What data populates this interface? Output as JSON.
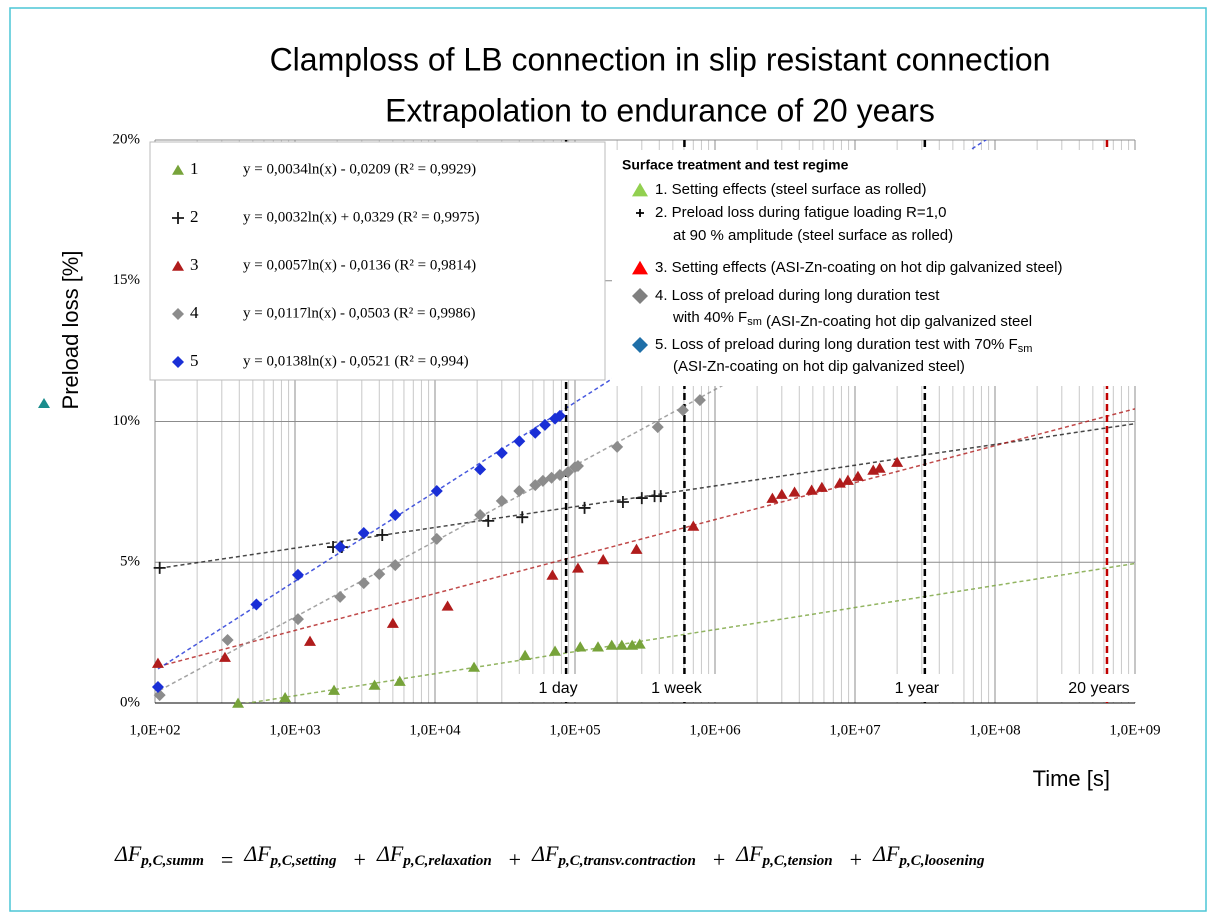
{
  "chart_data": {
    "type": "scatter",
    "title": [
      "Clamploss of LB connection in slip resistant connection",
      "Extrapolation to endurance of 20 years"
    ],
    "x_label": "Time [s]",
    "y_label": "Preload loss [%]",
    "log_x": true,
    "grid": true,
    "xlim": [
      100,
      1000000000
    ],
    "xticks": [
      {
        "value": 100,
        "label": "1,0E+02"
      },
      {
        "value": 1000,
        "label": "1,0E+03"
      },
      {
        "value": 10000,
        "label": "1,0E+04"
      },
      {
        "value": 100000,
        "label": "1,0E+05"
      },
      {
        "value": 1000000,
        "label": "1,0E+06"
      },
      {
        "value": 10000000,
        "label": "1,0E+07"
      },
      {
        "value": 100000000,
        "label": "1,0E+08"
      },
      {
        "value": 1000000000,
        "label": "1,0E+09"
      }
    ],
    "ylim": [
      0,
      20
    ],
    "yticks": [
      {
        "value": 0,
        "label": "0%"
      },
      {
        "value": 5,
        "label": "5%"
      },
      {
        "value": 10,
        "label": "10%"
      },
      {
        "value": 15,
        "label": "15%"
      },
      {
        "value": 20,
        "label": "20%"
      }
    ],
    "series": [
      {
        "name": "1",
        "color": "#77a33a",
        "marker": "triangle",
        "equation": "y = 0,0034ln(x) - 0,0209 (R² = 0,9929)",
        "x": [
          392,
          850,
          1900,
          3700,
          5600,
          19000,
          44000,
          72000,
          109000,
          146000,
          183000,
          216000,
          256000,
          290000
        ],
        "values": [
          0,
          0.2,
          0.46,
          0.64,
          0.78,
          1.28,
          1.7,
          1.85,
          2.0,
          2.0,
          2.06,
          2.06,
          2.06,
          2.1
        ]
      },
      {
        "name": "2",
        "color": "#1a1a1a",
        "marker": "plus",
        "equation": "y = 0,0032ln(x) + 0,0329 (R² = 0,9975)",
        "x": [
          108,
          1870,
          2160,
          4200,
          24000,
          42000,
          117000,
          220000,
          300000,
          370000,
          410000
        ],
        "values": [
          4.8,
          5.54,
          5.54,
          5.97,
          6.47,
          6.6,
          6.93,
          7.14,
          7.28,
          7.35,
          7.35
        ]
      },
      {
        "name": "3",
        "color": "#b01c1c",
        "marker": "triangle",
        "equation": "y = 0,0057ln(x) - 0,0136 (R² = 0,9814)",
        "x": [
          105,
          316,
          1280,
          5000,
          12300,
          69000,
          105000,
          159000,
          275000,
          700000,
          2570000,
          3000000,
          3700000,
          4900000,
          5800000,
          7800000,
          8900000,
          10500000,
          13500000,
          15000000,
          20000000
        ],
        "values": [
          1.42,
          1.63,
          2.2,
          2.84,
          3.45,
          4.55,
          4.8,
          5.1,
          5.47,
          6.29,
          7.28,
          7.42,
          7.5,
          7.57,
          7.67,
          7.82,
          7.92,
          8.06,
          8.28,
          8.35,
          8.56
        ]
      },
      {
        "name": "4",
        "color": "#8c8c8c",
        "marker": "diamond",
        "equation": "y = 0,0117ln(x) - 0,0503 (R² = 0,9986)",
        "x": [
          108,
          330,
          1050,
          2100,
          3100,
          4000,
          5200,
          10300,
          21000,
          30000,
          40000,
          52000,
          59000,
          68000,
          78000,
          89000,
          100000,
          105000,
          200000,
          390000,
          590000,
          780000
        ],
        "values": [
          0.28,
          2.24,
          2.98,
          3.77,
          4.26,
          4.58,
          4.9,
          5.83,
          6.68,
          7.18,
          7.53,
          7.74,
          7.89,
          8.0,
          8.1,
          8.2,
          8.38,
          8.42,
          9.1,
          9.8,
          10.4,
          10.76
        ]
      },
      {
        "name": "5",
        "color": "#1a2fd6",
        "marker": "diamond",
        "equation": "y = 0,0138ln(x) - 0,0521 (R² = 0,994)",
        "x": [
          105,
          530,
          1050,
          2100,
          3100,
          5200,
          10300,
          21000,
          30000,
          40000,
          52000,
          61000,
          72000,
          78000
        ],
        "values": [
          0.57,
          3.5,
          4.55,
          5.54,
          6.04,
          6.68,
          7.53,
          8.3,
          8.88,
          9.3,
          9.6,
          9.88,
          10.1,
          10.2
        ]
      }
    ],
    "time_markers": [
      {
        "label": "1 day",
        "x": 86400,
        "color": "#000000"
      },
      {
        "label": "1 week",
        "x": 604800,
        "color": "#000000"
      },
      {
        "label": "1 year",
        "x": 31536000,
        "color": "#000000"
      },
      {
        "label": "20 years",
        "x": 630720000,
        "color": "#c00000"
      }
    ],
    "legend2": {
      "title": "Surface treatment and test regime",
      "items": [
        {
          "color": "#92d050",
          "marker": "triangle",
          "lines": [
            [
              "1. Setting effects (steel surface as rolled)"
            ]
          ]
        },
        {
          "color": "#000000",
          "marker": "plus",
          "lines": [
            [
              "2. Preload loss during fatigue loading R=1,0"
            ],
            [
              "at 90 % amplitude (steel surface as rolled)"
            ]
          ]
        },
        {
          "color": "#ff0000",
          "marker": "triangle",
          "lines": [
            [
              "3. Setting effects (ASI-Zn-coating on hot dip galvanized steel)"
            ]
          ]
        },
        {
          "color": "#808080",
          "marker": "diamond",
          "lines": [
            [
              "4. Loss of preload during long duration test"
            ],
            [
              "with 40% F",
              {
                "sub": "sm"
              },
              " (ASI-Zn-coating hot dip galvanized steel"
            ]
          ]
        },
        {
          "color": "#1f6fa8",
          "marker": "diamond",
          "lines": [
            [
              "5. Loss of preload during long duration test with 70% F",
              {
                "sub": "sm"
              }
            ],
            [
              "(ASI-Zn-coating on hot dip galvanized steel)"
            ]
          ]
        }
      ]
    },
    "formula": {
      "terms": [
        {
          "main": "ΔF",
          "sub": "p,C,summ"
        },
        {
          "main": "ΔF",
          "sub": "p,C,setting"
        },
        {
          "main": "ΔF",
          "sub": "p,C,relaxation"
        },
        {
          "main": "ΔF",
          "sub": "p,C,transv.contraction"
        },
        {
          "main": "ΔF",
          "sub": "p,C,tension"
        },
        {
          "main": "ΔF",
          "sub": "p,C,loosening"
        }
      ],
      "ops": [
        "=",
        "+",
        "+",
        "+",
        "+"
      ]
    }
  }
}
